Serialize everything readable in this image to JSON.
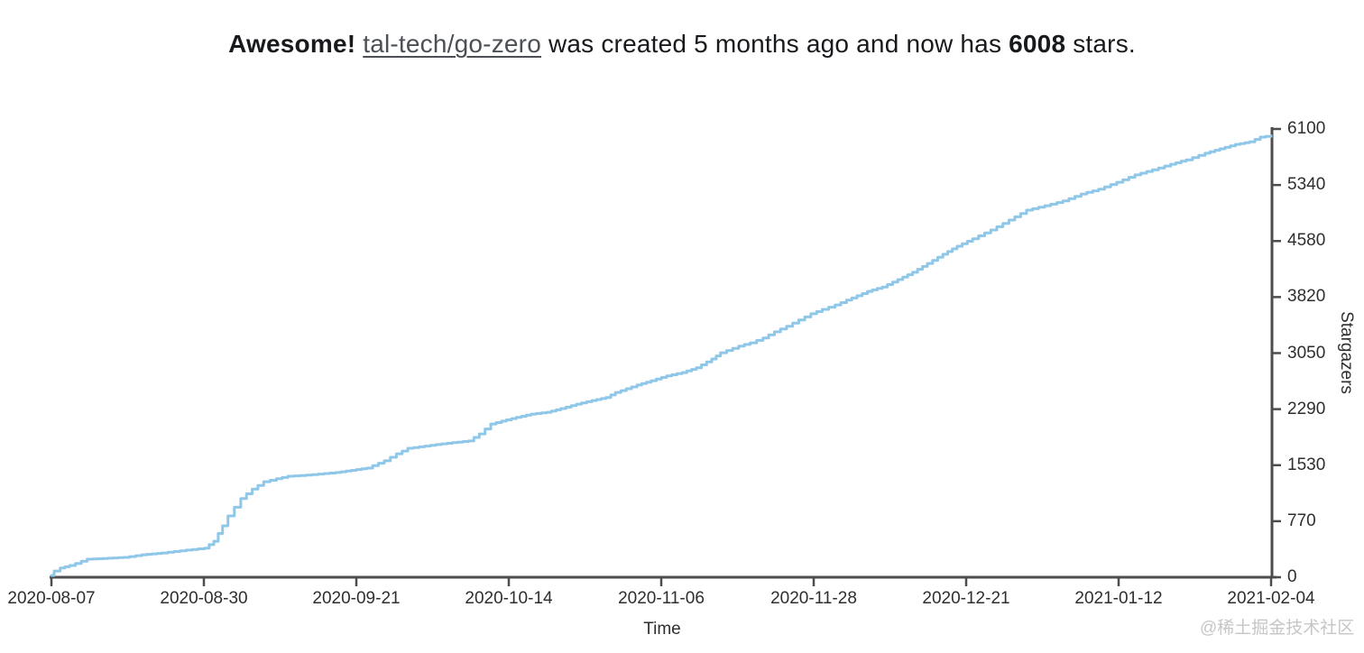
{
  "page": {
    "title": {
      "prefix": "Awesome!",
      "repo_link": "tal-tech/go-zero",
      "middle": "was created 5 months ago and now has",
      "star_count": "6008",
      "suffix": "stars."
    },
    "watermark": "@稀土掘金技术社区"
  },
  "chart_data": {
    "type": "line",
    "series_name": "stargazers-over-time",
    "xlabel": "Time",
    "ylabel": "Stargazers",
    "x_tick_labels": [
      "2020-08-07",
      "2020-08-30",
      "2020-09-21",
      "2020-10-14",
      "2020-11-06",
      "2020-11-28",
      "2020-12-21",
      "2021-01-12",
      "2021-02-04"
    ],
    "y_tick_labels": [
      "0",
      "770",
      "1530",
      "2290",
      "3050",
      "3820",
      "4580",
      "5340",
      "6100"
    ],
    "ylim": [
      0,
      6100
    ],
    "xlim_days_since_start": [
      0,
      181
    ],
    "x_start_date": "2020-08-07",
    "x_end_date": "2021-02-04",
    "final_star_count": 6008,
    "line_color": "#8FC7E8",
    "axis_color": "#4D4D4D",
    "grid": "off",
    "legend": "none",
    "points_day_stars": [
      [
        0,
        25
      ],
      [
        0.4,
        85
      ],
      [
        1.3,
        125
      ],
      [
        2.7,
        160
      ],
      [
        5.3,
        245
      ],
      [
        10.7,
        270
      ],
      [
        13.4,
        305
      ],
      [
        16.4,
        330
      ],
      [
        20,
        370
      ],
      [
        22.7,
        395
      ],
      [
        24.1,
        490
      ],
      [
        25.4,
        700
      ],
      [
        26.2,
        835
      ],
      [
        28.1,
        1070
      ],
      [
        29.8,
        1200
      ],
      [
        31.5,
        1300
      ],
      [
        33.4,
        1340
      ],
      [
        35.1,
        1375
      ],
      [
        37.8,
        1390
      ],
      [
        42.2,
        1425
      ],
      [
        46.8,
        1485
      ],
      [
        49.4,
        1585
      ],
      [
        51.2,
        1680
      ],
      [
        52.9,
        1755
      ],
      [
        57.9,
        1815
      ],
      [
        61.9,
        1855
      ],
      [
        63.5,
        1950
      ],
      [
        65.2,
        2085
      ],
      [
        66.8,
        2125
      ],
      [
        69,
        2175
      ],
      [
        71.2,
        2220
      ],
      [
        73.5,
        2245
      ],
      [
        75.6,
        2295
      ],
      [
        77.9,
        2355
      ],
      [
        80.2,
        2405
      ],
      [
        82.3,
        2445
      ],
      [
        83.7,
        2515
      ],
      [
        86.9,
        2615
      ],
      [
        89,
        2675
      ],
      [
        91.3,
        2740
      ],
      [
        93.6,
        2785
      ],
      [
        95.7,
        2850
      ],
      [
        98,
        2970
      ],
      [
        99.3,
        3055
      ],
      [
        102,
        3145
      ],
      [
        103.7,
        3190
      ],
      [
        105.6,
        3255
      ],
      [
        107.3,
        3340
      ],
      [
        109.1,
        3415
      ],
      [
        110.9,
        3500
      ],
      [
        112.7,
        3585
      ],
      [
        114.4,
        3645
      ],
      [
        116.3,
        3705
      ],
      [
        118,
        3770
      ],
      [
        121.1,
        3890
      ],
      [
        123.3,
        3950
      ],
      [
        125.6,
        4050
      ],
      [
        127.8,
        4150
      ],
      [
        130,
        4270
      ],
      [
        132.3,
        4395
      ],
      [
        134.4,
        4505
      ],
      [
        136.7,
        4605
      ],
      [
        139.4,
        4725
      ],
      [
        142.1,
        4860
      ],
      [
        144.7,
        4995
      ],
      [
        147.4,
        5055
      ],
      [
        150.1,
        5120
      ],
      [
        152.8,
        5215
      ],
      [
        155.4,
        5280
      ],
      [
        158.1,
        5375
      ],
      [
        160.8,
        5475
      ],
      [
        163.4,
        5545
      ],
      [
        166.1,
        5620
      ],
      [
        168.4,
        5680
      ],
      [
        171.2,
        5770
      ],
      [
        173.4,
        5830
      ],
      [
        175.7,
        5890
      ],
      [
        177.8,
        5925
      ],
      [
        179.4,
        5990
      ],
      [
        181,
        6008
      ]
    ]
  }
}
